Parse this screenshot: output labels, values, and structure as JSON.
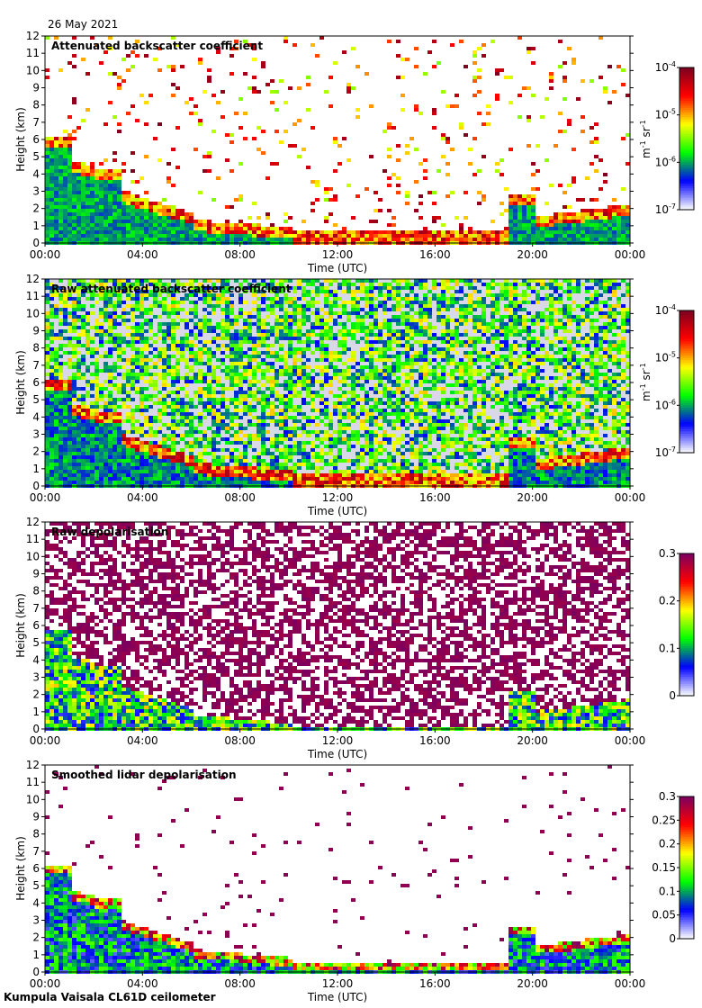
{
  "header": {
    "date": "26 May 2021"
  },
  "footer": {
    "instrument": "Kumpula Vaisala CL61D ceilometer"
  },
  "chart_data": [
    {
      "type": "heatmap",
      "title": "Attenuated backscatter coefficient",
      "xlabel": "Time (UTC)",
      "ylabel": "Height (km)",
      "x_ticks": [
        "00:00",
        "04:00",
        "08:00",
        "12:00",
        "16:00",
        "20:00",
        "00:00"
      ],
      "y_ticks": [
        "0",
        "1",
        "2",
        "3",
        "4",
        "5",
        "6",
        "7",
        "8",
        "9",
        "10",
        "11",
        "12"
      ],
      "ylim": [
        0,
        12
      ],
      "colorbar": {
        "scale": "log",
        "range": [
          1e-07,
          0.0001
        ],
        "ticks": [
          "10",
          "10",
          "10",
          "10"
        ],
        "exponents": [
          "-7",
          "-6",
          "-5",
          "-4"
        ],
        "unit": "m",
        "unit_exp": "-1",
        "unit2": "sr",
        "unit2_exp": "-1"
      },
      "colormap": [
        "#ffffff",
        "#0000ff",
        "#00ff00",
        "#ffff00",
        "#ff0000",
        "#7a0020"
      ]
    },
    {
      "type": "heatmap",
      "title": "Raw attenuated backscatter coefficient",
      "xlabel": "Time (UTC)",
      "ylabel": "Height (km)",
      "x_ticks": [
        "00:00",
        "04:00",
        "08:00",
        "12:00",
        "16:00",
        "20:00",
        "00:00"
      ],
      "y_ticks": [
        "0",
        "1",
        "2",
        "3",
        "4",
        "5",
        "6",
        "7",
        "8",
        "9",
        "10",
        "11",
        "12"
      ],
      "ylim": [
        0,
        12
      ],
      "colorbar": {
        "scale": "log",
        "range": [
          1e-07,
          0.0001
        ],
        "ticks": [
          "10",
          "10",
          "10",
          "10"
        ],
        "exponents": [
          "-7",
          "-6",
          "-5",
          "-4"
        ],
        "unit": "m",
        "unit_exp": "-1",
        "unit2": "sr",
        "unit2_exp": "-1"
      },
      "colormap": [
        "#ffffff",
        "#0000ff",
        "#00ff00",
        "#ffff00",
        "#ff0000",
        "#7a0020"
      ]
    },
    {
      "type": "heatmap",
      "title": "Raw depolarisation",
      "xlabel": "Time (UTC)",
      "ylabel": "Height (km)",
      "x_ticks": [
        "00:00",
        "04:00",
        "08:00",
        "12:00",
        "16:00",
        "20:00",
        "00:00"
      ],
      "y_ticks": [
        "0",
        "1",
        "2",
        "3",
        "4",
        "5",
        "6",
        "7",
        "8",
        "9",
        "10",
        "11",
        "12"
      ],
      "ylim": [
        0,
        12
      ],
      "colorbar": {
        "scale": "linear",
        "range": [
          0,
          0.3
        ],
        "ticks": [
          "0",
          "0.1",
          "0.2",
          "0.3"
        ]
      },
      "colormap": [
        "#ffffff",
        "#0000ff",
        "#00ff00",
        "#ffff00",
        "#ff0000",
        "#7a0060"
      ]
    },
    {
      "type": "heatmap",
      "title": "Smoothed lidar depolarisation",
      "xlabel": "Time (UTC)",
      "ylabel": "Height (km)",
      "x_ticks": [
        "00:00",
        "04:00",
        "08:00",
        "12:00",
        "16:00",
        "20:00",
        "00:00"
      ],
      "y_ticks": [
        "0",
        "1",
        "2",
        "3",
        "4",
        "5",
        "6",
        "7",
        "8",
        "9",
        "10",
        "11",
        "12"
      ],
      "ylim": [
        0,
        12
      ],
      "colorbar": {
        "scale": "linear",
        "range": [
          0,
          0.3
        ],
        "ticks": [
          "0",
          "0.05",
          "0.1",
          "0.15",
          "0.2",
          "0.25",
          "0.3"
        ]
      },
      "colormap": [
        "#ffffff",
        "#0000ff",
        "#00ff00",
        "#ffff00",
        "#ff0000",
        "#7a0060"
      ]
    }
  ]
}
